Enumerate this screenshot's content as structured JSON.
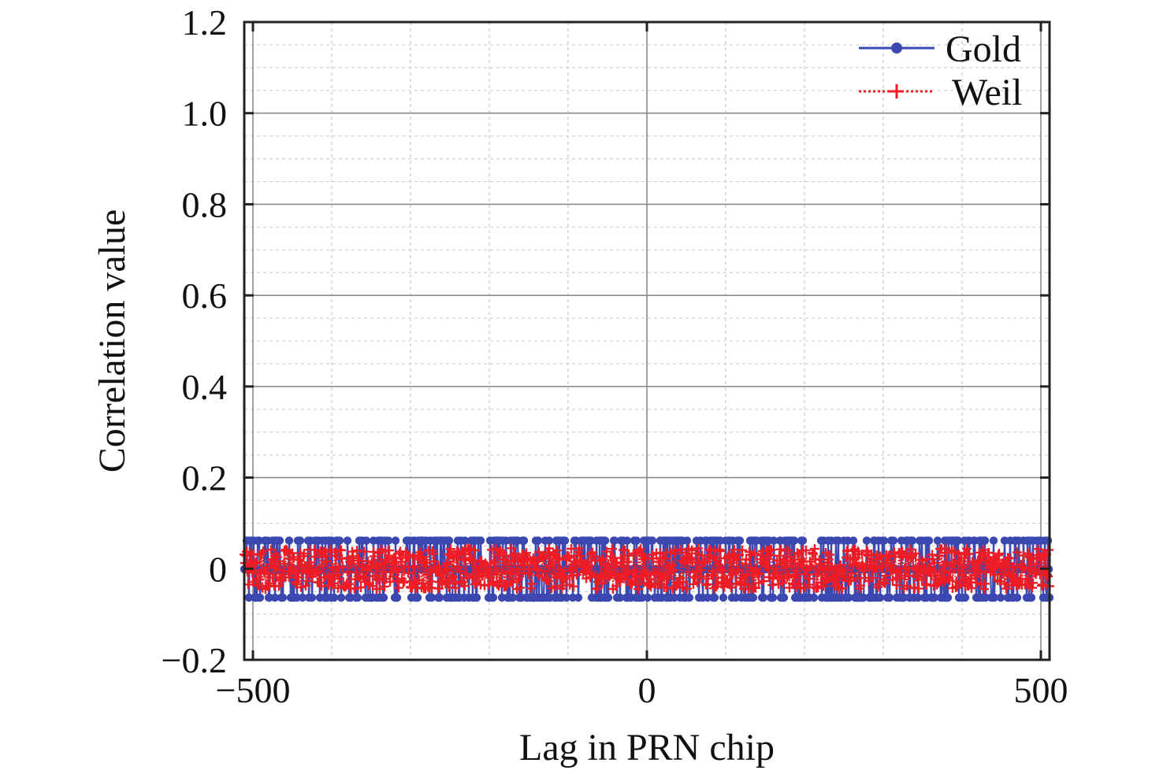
{
  "chart_data": {
    "type": "line",
    "title": "",
    "xlabel": "Lag in PRN chip",
    "ylabel": "Correlation value",
    "xlim": [
      -511,
      511
    ],
    "ylim": [
      -0.2,
      1.2
    ],
    "x_tick_values": [
      -500,
      0,
      500
    ],
    "x_tick_labels": [
      "−500",
      "0",
      "500"
    ],
    "y_tick_values": [
      -0.2,
      0,
      0.2,
      0.4,
      0.6,
      0.8,
      1.0,
      1.2
    ],
    "y_tick_labels": [
      "−0.2",
      "0",
      "0.2",
      "0.4",
      "0.6",
      "0.8",
      "1.0",
      "1.2"
    ],
    "x_minor_step": 100,
    "y_minor_step": 0.05,
    "grid": true,
    "legend_position": "top-right",
    "series": [
      {
        "name": "Gold",
        "color": "#3a48b0",
        "line": "solid",
        "marker": "dot",
        "x_range": [
          -511,
          511
        ],
        "distinct_values": [
          -0.0635,
          -0.001,
          0.0616
        ]
      },
      {
        "name": "Weil",
        "color": "#ee1c25",
        "line": "dotted",
        "marker": "plus",
        "x_range": [
          -511,
          511
        ],
        "y_range": [
          -0.045,
          0.045
        ]
      }
    ]
  }
}
